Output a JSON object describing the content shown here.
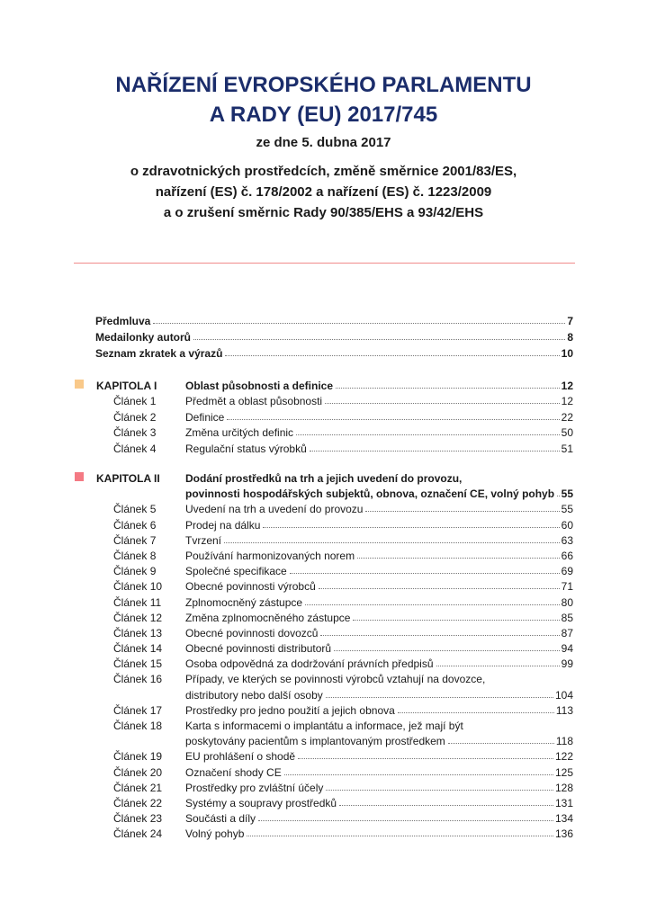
{
  "header": {
    "title_line1": "NAŘÍZENÍ EVROPSKÉHO PARLAMENTU",
    "title_line2": "A RADY (EU) 2017/745",
    "date": "ze dne 5. dubna 2017",
    "desc_line1": "o zdravotnických prostředcích, změně směrnice 2001/83/ES,",
    "desc_line2": "nařízení (ES) č. 178/2002 a nařízení (ES) č. 1223/2009",
    "desc_line3": "a o zrušení směrnic Rady 90/385/EHS a 93/42/EHS"
  },
  "colors": {
    "title": "#1b2d6b",
    "rule": "#f08c8c",
    "chapter1_marker": "#f9c98a",
    "chapter2_marker": "#f47a84"
  },
  "front": [
    {
      "label": "Předmluva",
      "page": "7"
    },
    {
      "label": "Medailonky autorů",
      "page": "8"
    },
    {
      "label": "Seznam zkratek a výrazů",
      "page": "10"
    }
  ],
  "chapters": [
    {
      "label": "KAPITOLA I",
      "title": "Oblast působnosti a definice",
      "page": "12",
      "articles": [
        {
          "label": "Článek 1",
          "title": "Předmět a oblast působnosti",
          "page": "12"
        },
        {
          "label": "Článek 2",
          "title": "Definice",
          "page": "22"
        },
        {
          "label": "Článek 3",
          "title": "Změna určitých definic",
          "page": "50"
        },
        {
          "label": "Článek 4",
          "title": "Regulační status výrobků",
          "page": "51"
        }
      ]
    },
    {
      "label": "KAPITOLA II",
      "title_line1": "Dodání prostředků na trh a jejich uvedení do provozu,",
      "title_line2": "povinnosti hospodářských subjektů, obnova, označení CE, volný pohyb",
      "page": "55",
      "articles": [
        {
          "label": "Článek 5",
          "title": "Uvedení na trh a uvedení do provozu",
          "page": "55"
        },
        {
          "label": "Článek 6",
          "title": "Prodej na dálku",
          "page": "60"
        },
        {
          "label": "Článek 7",
          "title": "Tvrzení",
          "page": "63"
        },
        {
          "label": "Článek 8",
          "title": "Používání harmonizovaných norem",
          "page": "66"
        },
        {
          "label": "Článek 9",
          "title": "Společné specifikace",
          "page": "69"
        },
        {
          "label": "Článek 10",
          "title": "Obecné povinnosti výrobců",
          "page": "71"
        },
        {
          "label": "Článek 11",
          "title": "Zplnomocněný zástupce",
          "page": "80"
        },
        {
          "label": "Článek 12",
          "title": "Změna zplnomocněného zástupce",
          "page": "85"
        },
        {
          "label": "Článek 13",
          "title": "Obecné povinnosti dovozců",
          "page": "87"
        },
        {
          "label": "Článek 14",
          "title": "Obecné povinnosti distributorů",
          "page": "94"
        },
        {
          "label": "Článek 15",
          "title": "Osoba odpovědná za dodržování právních předpisů",
          "page": "99"
        },
        {
          "label": "Článek 16",
          "title_line1": "Případy, ve kterých se povinnosti výrobců vztahují na dovozce,",
          "title": "distributory nebo další osoby",
          "page": "104"
        },
        {
          "label": "Článek 17",
          "title": "Prostředky pro jedno použití a jejich obnova",
          "page": "113"
        },
        {
          "label": "Článek 18",
          "title_line1": "Karta s informacemi o implantátu a informace, jež mají být",
          "title": "poskytovány pacientům s implantovaným prostředkem",
          "page": "118"
        },
        {
          "label": "Článek 19",
          "title": "EU prohlášení o shodě",
          "page": "122"
        },
        {
          "label": "Článek 20",
          "title": "Označení shody CE",
          "page": "125"
        },
        {
          "label": "Článek 21",
          "title": "Prostředky pro zvláštní účely",
          "page": "128"
        },
        {
          "label": "Článek 22",
          "title": "Systémy a soupravy prostředků",
          "page": "131"
        },
        {
          "label": "Článek 23",
          "title": "Součásti a díly",
          "page": "134"
        },
        {
          "label": "Článek 24",
          "title": "Volný pohyb",
          "page": "136"
        }
      ]
    }
  ]
}
